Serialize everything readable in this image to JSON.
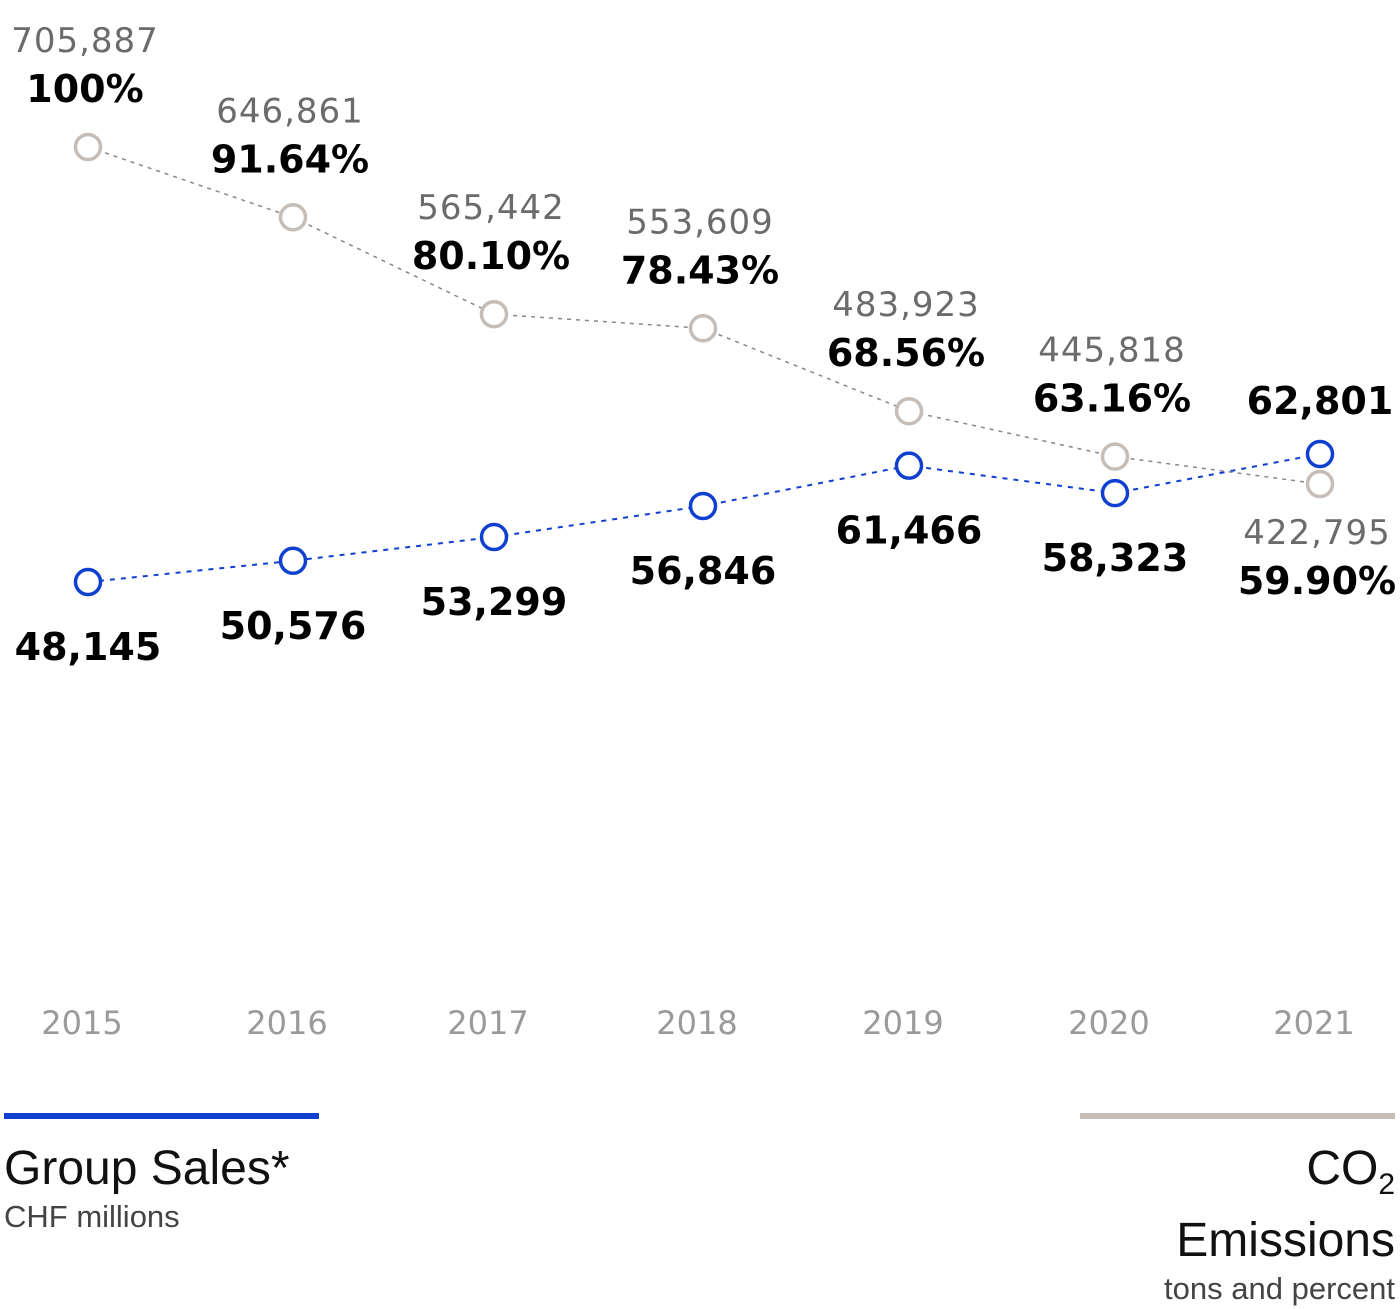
{
  "chart_data": {
    "type": "line",
    "categories": [
      "2015",
      "2016",
      "2017",
      "2018",
      "2019",
      "2020",
      "2021"
    ],
    "series": [
      {
        "name": "Group Sales*",
        "unit": "CHF millions",
        "color": "#1040d0",
        "values": [
          48145,
          50576,
          53299,
          56846,
          61466,
          58323,
          62801
        ],
        "labels": [
          "48,145",
          "50,576",
          "53,299",
          "56,846",
          "61,466",
          "58,323",
          "62,801"
        ],
        "label_side": [
          "below",
          "below",
          "below",
          "below",
          "below",
          "below",
          "above"
        ],
        "ylim": [
          48145,
          62801
        ]
      },
      {
        "name": "CO2 Emissions",
        "unit": "tons and percent",
        "color": "#c4bdb8",
        "values": [
          705887,
          646861,
          565442,
          553609,
          483923,
          445818,
          422795
        ],
        "labels": [
          "705,887",
          "646,861",
          "565,442",
          "553,609",
          "483,923",
          "445,818",
          "422,795"
        ],
        "percent": [
          "100%",
          "91.64%",
          "80.10%",
          "78.43%",
          "68.56%",
          "63.16%",
          "59.90%"
        ],
        "label_side": [
          "above",
          "above",
          "above",
          "above",
          "above",
          "above",
          "below"
        ],
        "ylim": [
          422795,
          705887
        ]
      }
    ],
    "legend": [
      {
        "title_main": "Group Sales*",
        "subtitle": "CHF millions",
        "color": "#1040d0",
        "placement": "bottom-left"
      },
      {
        "title_prefix": "CO",
        "title_sub": "2",
        "title_suffix": " Emissions",
        "subtitle": "tons and percent",
        "color": "#c4bdb8",
        "placement": "bottom-right"
      }
    ],
    "grid": "vertical"
  }
}
